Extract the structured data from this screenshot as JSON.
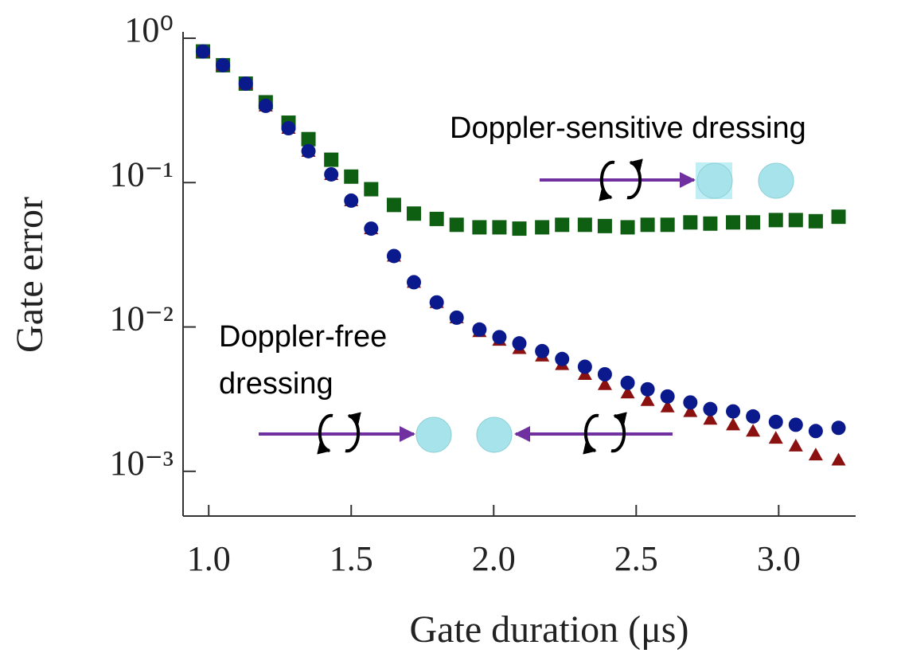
{
  "chart_data": {
    "type": "scatter",
    "x_label": "Gate duration (μs)",
    "y_label": "Gate error",
    "y_log": true,
    "xlim": [
      0.91,
      3.27
    ],
    "ylim": [
      0.00049,
      1
    ],
    "xticks": [
      {
        "value": 1,
        "label": "1.0"
      },
      {
        "value": 1.5,
        "label": "1.5"
      },
      {
        "value": 2,
        "label": "2.0"
      },
      {
        "value": 2.5,
        "label": "2.5"
      },
      {
        "value": 3,
        "label": "3.0"
      }
    ],
    "yticks": [
      {
        "value": 1,
        "label": "10⁰"
      },
      {
        "value": 0.1,
        "label": "10⁻¹"
      },
      {
        "value": 0.01,
        "label": "10⁻²"
      },
      {
        "value": 0.001,
        "label": "10⁻³"
      }
    ],
    "x": [
      0.98,
      1.05,
      1.13,
      1.2,
      1.28,
      1.35,
      1.43,
      1.5,
      1.57,
      1.65,
      1.72,
      1.8,
      1.87,
      1.95,
      2.02,
      2.09,
      2.17,
      2.24,
      2.32,
      2.39,
      2.47,
      2.54,
      2.61,
      2.69,
      2.76,
      2.84,
      2.91,
      2.99,
      3.06,
      3.13,
      3.21
    ],
    "series": [
      {
        "color": "#0f5f12",
        "marker": "square",
        "values": [
          0.81,
          0.65,
          0.485,
          0.36,
          0.26,
          0.2,
          0.144,
          0.11,
          0.09,
          0.07,
          0.061,
          0.056,
          0.051,
          0.049,
          0.049,
          0.048,
          0.049,
          0.051,
          0.051,
          0.05,
          0.049,
          0.051,
          0.051,
          0.053,
          0.052,
          0.053,
          0.053,
          0.055,
          0.055,
          0.054,
          0.058
        ]
      },
      {
        "color": "#8b1010",
        "marker": "triangle",
        "values": [
          0.81,
          0.65,
          0.485,
          0.34,
          0.238,
          0.165,
          0.114,
          0.075,
          0.048,
          0.031,
          0.0204,
          0.0148,
          0.0116,
          0.0093,
          0.0081,
          0.0071,
          0.0063,
          0.0055,
          0.0047,
          0.004,
          0.0035,
          0.0031,
          0.0028,
          0.0026,
          0.0023,
          0.0021,
          0.0019,
          0.0017,
          0.0015,
          0.0013,
          0.0012
        ]
      },
      {
        "color": "#0a1a8c",
        "marker": "circle",
        "values": [
          0.81,
          0.65,
          0.485,
          0.34,
          0.238,
          0.165,
          0.114,
          0.075,
          0.048,
          0.031,
          0.0204,
          0.0148,
          0.0116,
          0.0096,
          0.0085,
          0.0077,
          0.0068,
          0.006,
          0.0053,
          0.0047,
          0.0041,
          0.0037,
          0.0033,
          0.003,
          0.0027,
          0.0026,
          0.0024,
          0.0022,
          0.0021,
          0.0019,
          0.002
        ]
      }
    ],
    "annotations": [
      [
        "Doppler-sensitive dressing"
      ],
      [
        "Doppler-free",
        "dressing"
      ]
    ]
  }
}
